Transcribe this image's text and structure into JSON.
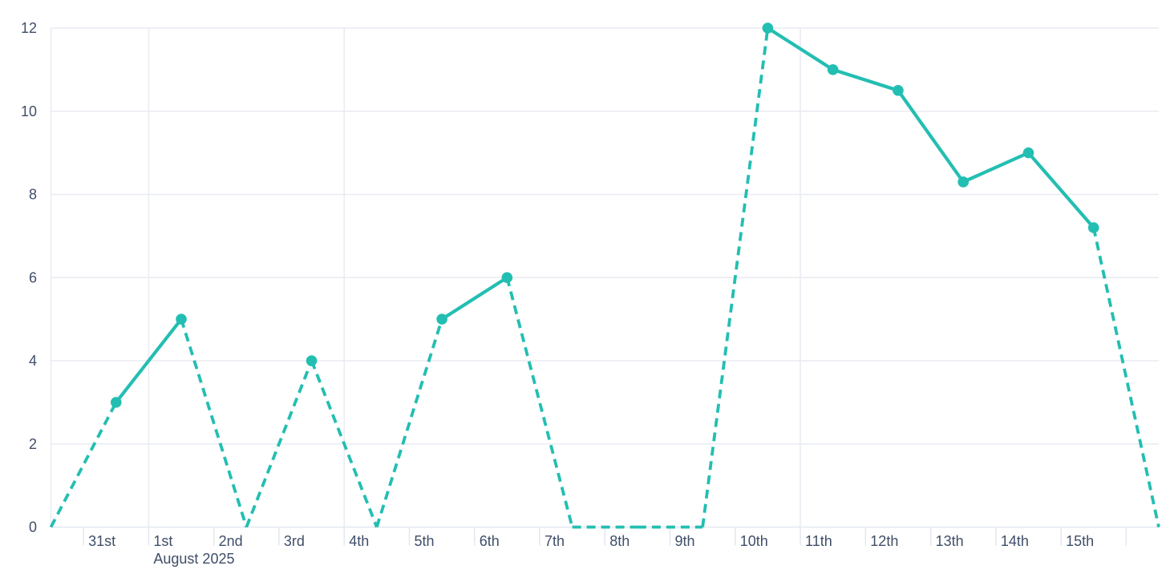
{
  "chart_data": {
    "type": "line",
    "title": "",
    "xlabel": "",
    "ylabel": "",
    "grid": true,
    "legend": null,
    "y_axis": {
      "min": 0,
      "max": 12,
      "ticks": [
        0,
        2,
        4,
        6,
        8,
        10,
        12
      ]
    },
    "x_axis": {
      "month_label": "August 2025",
      "month_label_under": "1st",
      "visible_tick_labels": [
        "31st",
        "1st",
        "2nd",
        "3rd",
        "4th",
        "5th",
        "6th",
        "7th",
        "8th",
        "9th",
        "10th",
        "11th",
        "12th",
        "13th",
        "14th",
        "15th"
      ]
    },
    "points": [
      {
        "label": "",
        "value": 0
      },
      {
        "label": "31st",
        "value": 3
      },
      {
        "label": "1st",
        "value": 5,
        "sub_label": "August 2025"
      },
      {
        "label": "2nd",
        "value": 0
      },
      {
        "label": "3rd",
        "value": 4
      },
      {
        "label": "4th",
        "value": 0
      },
      {
        "label": "5th",
        "value": 5
      },
      {
        "label": "6th",
        "value": 6
      },
      {
        "label": "7th",
        "value": 0
      },
      {
        "label": "8th",
        "value": 0
      },
      {
        "label": "9th",
        "value": 0
      },
      {
        "label": "10th",
        "value": 12
      },
      {
        "label": "11th",
        "value": 11
      },
      {
        "label": "12th",
        "value": 10.5
      },
      {
        "label": "13th",
        "value": 8.3
      },
      {
        "label": "14th",
        "value": 9
      },
      {
        "label": "15th",
        "value": 7.2
      },
      {
        "label": "",
        "value": 0
      }
    ],
    "segment_styles": [
      "dashed",
      "solid",
      "dashed",
      "dashed",
      "dashed",
      "dashed",
      "solid",
      "dashed",
      "dashed",
      "dashed",
      "dashed",
      "solid",
      "solid",
      "solid",
      "solid",
      "solid",
      "dashed"
    ],
    "markers_on_nonzero_values": true,
    "vertical_gridlines_before_points": [
      2,
      5,
      12
    ],
    "colors": {
      "line": "#23BEB2",
      "marker": "#23BEB2",
      "gridline": "#E8EBF2",
      "axis_line": "#E3E7EF",
      "tick": "#E3E7EF",
      "text": "#3F4E68",
      "background": "#FFFFFF"
    }
  }
}
